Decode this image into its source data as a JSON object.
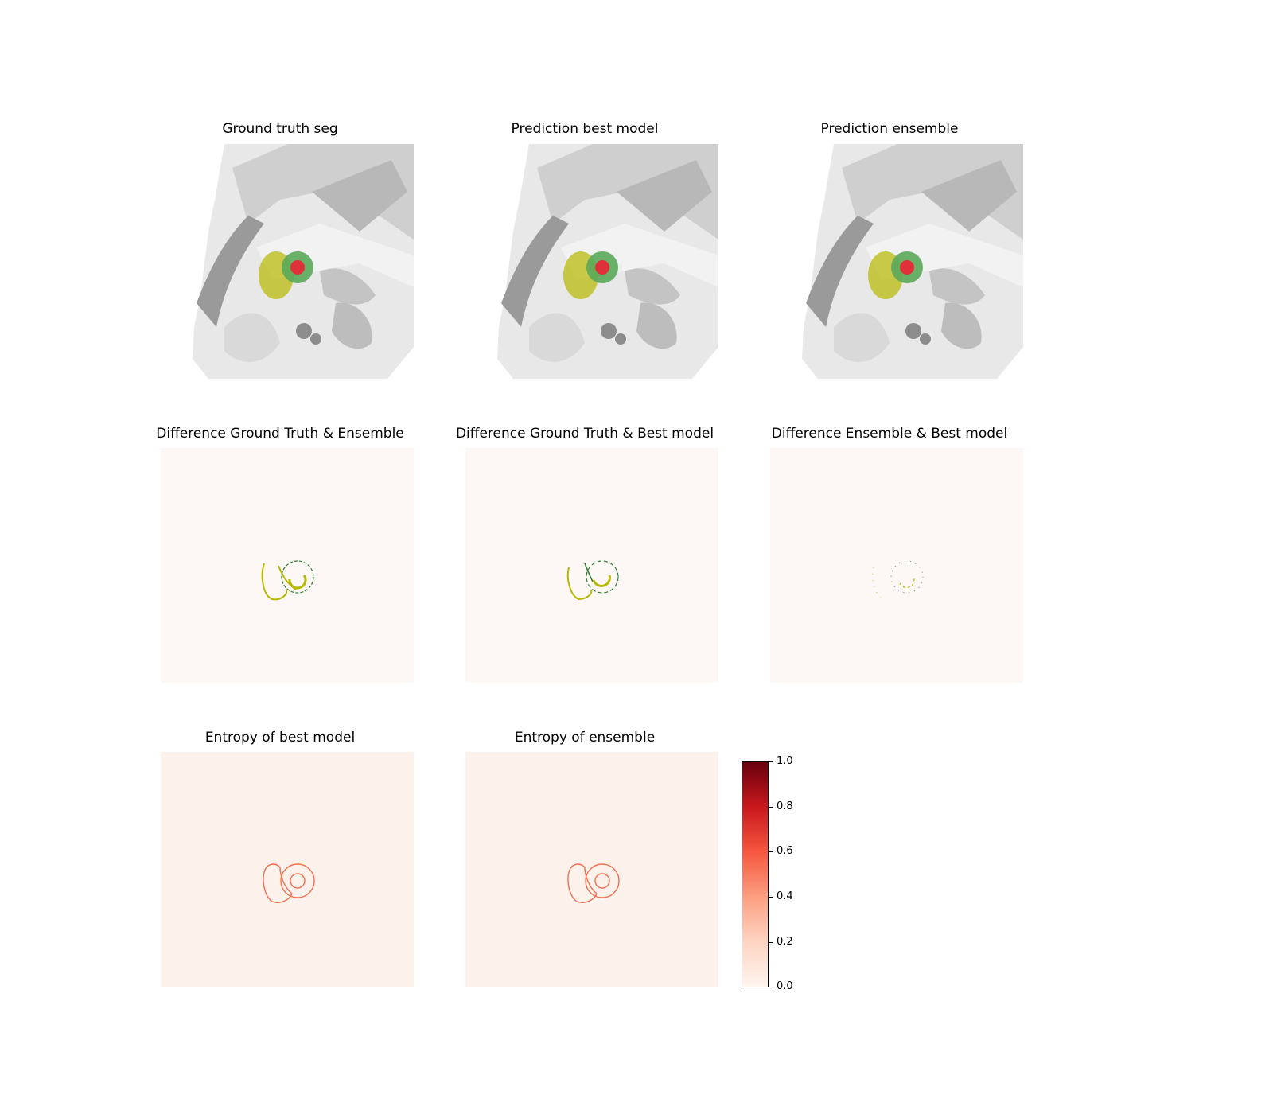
{
  "figure": {
    "panels": [
      {
        "title": "Ground truth seg",
        "kind": "ct"
      },
      {
        "title": "Prediction best model",
        "kind": "ct"
      },
      {
        "title": "Prediction ensemble",
        "kind": "ct"
      },
      {
        "title": "Difference Ground Truth & Ensemble",
        "kind": "diff"
      },
      {
        "title": "Difference Ground Truth & Best model",
        "kind": "diff"
      },
      {
        "title": "Difference Ensemble & Best model",
        "kind": "diff"
      },
      {
        "title": "Entropy of best model",
        "kind": "entropy"
      },
      {
        "title": "Entropy of ensemble",
        "kind": "entropy"
      }
    ],
    "colorbar": {
      "ticks": [
        "0.0",
        "0.2",
        "0.4",
        "0.6",
        "0.8",
        "1.0"
      ],
      "range": [
        0,
        1
      ],
      "colormap": "Reds",
      "color_low": "#fff5f0",
      "color_high": "#67000d"
    },
    "colors": {
      "seg_yellow": "#b8b800",
      "seg_green": "#5aa85a",
      "seg_red": "#e0303a",
      "diff_background": "#fdf8f6",
      "entropy_background": "#fdf1ec",
      "entropy_line": "#f07050"
    }
  }
}
